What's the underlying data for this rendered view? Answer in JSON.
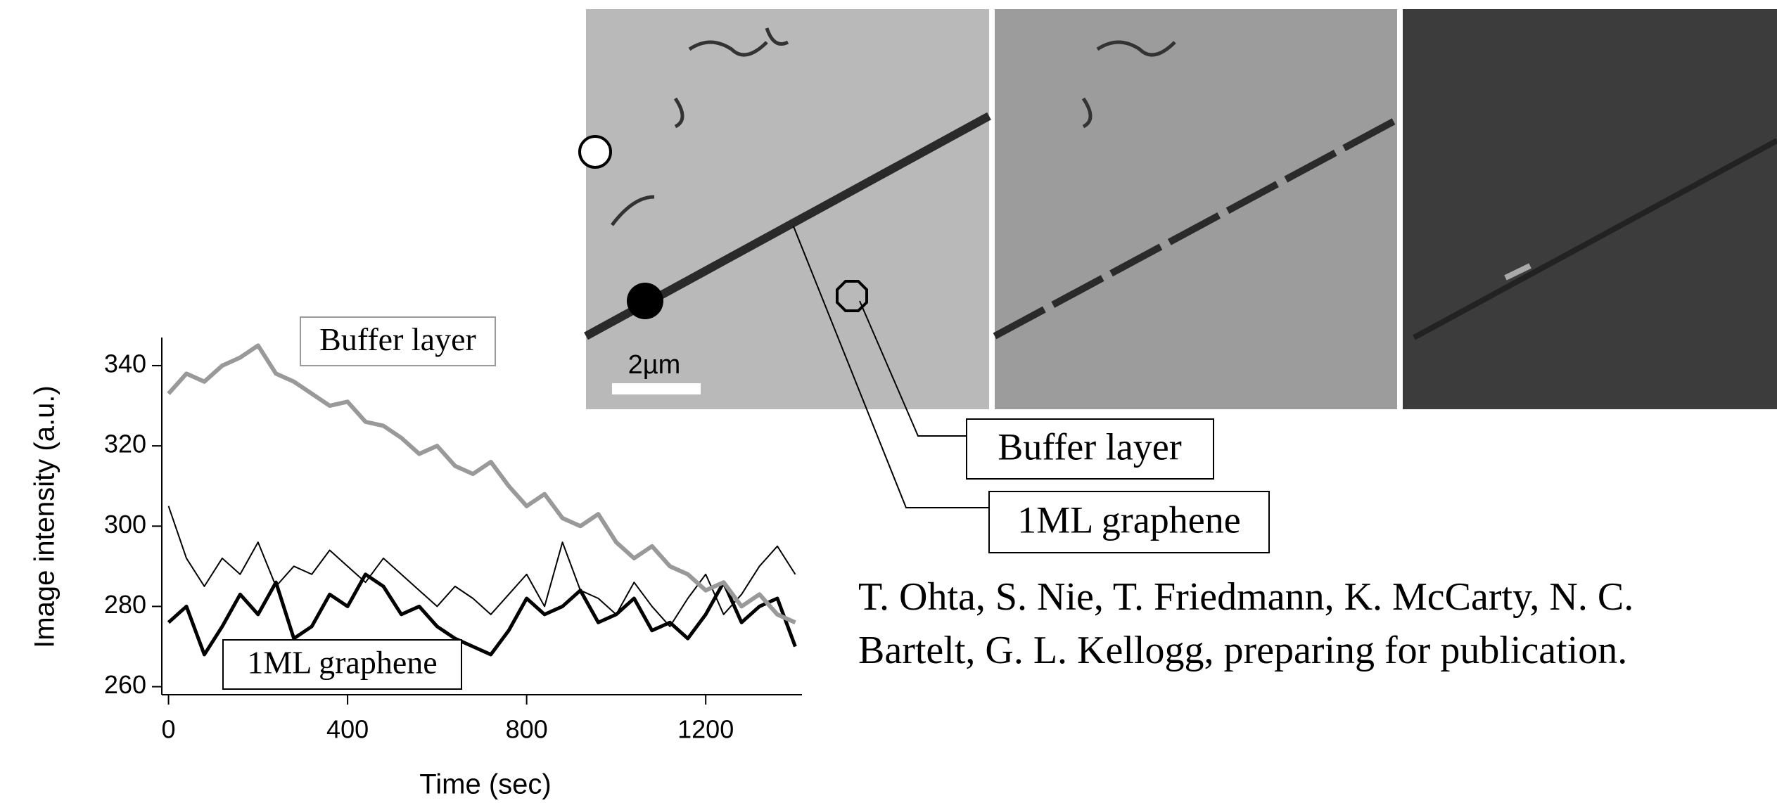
{
  "chart_data": {
    "type": "line",
    "x_label": "Time (sec)",
    "y_label": "Image intensity (a.u.)",
    "x": [
      0,
      40,
      80,
      120,
      160,
      200,
      240,
      280,
      320,
      360,
      400,
      440,
      480,
      520,
      560,
      600,
      640,
      680,
      720,
      760,
      800,
      840,
      880,
      920,
      960,
      1000,
      1040,
      1080,
      1120,
      1160,
      1200,
      1240,
      1280,
      1320,
      1360,
      1400
    ],
    "series": [
      {
        "name": "Buffer layer",
        "color": "#999999",
        "width": 6,
        "values": [
          333,
          338,
          336,
          340,
          342,
          345,
          338,
          336,
          333,
          330,
          331,
          326,
          325,
          322,
          318,
          320,
          315,
          313,
          316,
          310,
          305,
          308,
          302,
          300,
          303,
          296,
          292,
          295,
          290,
          288,
          284,
          286,
          280,
          283,
          278,
          276
        ]
      },
      {
        "name": "1ML graphene",
        "color": "#000000",
        "width": 5,
        "values": [
          276,
          280,
          268,
          275,
          283,
          278,
          286,
          272,
          275,
          283,
          280,
          288,
          285,
          278,
          280,
          275,
          272,
          270,
          268,
          274,
          282,
          278,
          280,
          284,
          276,
          278,
          282,
          274,
          276,
          272,
          278,
          286,
          276,
          280,
          282,
          270
        ]
      },
      {
        "color": "#000000",
        "width": 2,
        "values": [
          305,
          292,
          285,
          292,
          288,
          296,
          285,
          290,
          288,
          294,
          290,
          286,
          292,
          288,
          284,
          280,
          285,
          282,
          278,
          283,
          288,
          280,
          296,
          284,
          282,
          278,
          286,
          280,
          275,
          282,
          288,
          278,
          283,
          290,
          295,
          288
        ]
      }
    ],
    "xlim": [
      -15,
      1415
    ],
    "xticks": [
      0,
      400,
      800,
      1200
    ],
    "ylim": [
      258,
      347
    ],
    "yticks": [
      260,
      280,
      300,
      320,
      340
    ]
  },
  "figure": {
    "scale_bar": "2µm",
    "callouts": [
      "Buffer layer",
      "1ML graphene"
    ],
    "citation": [
      "T. Ohta, S. Nie, T. Friedmann, K. McCarty, N. C.",
      "Bartelt, G. L. Kellogg, preparing for publication."
    ]
  }
}
